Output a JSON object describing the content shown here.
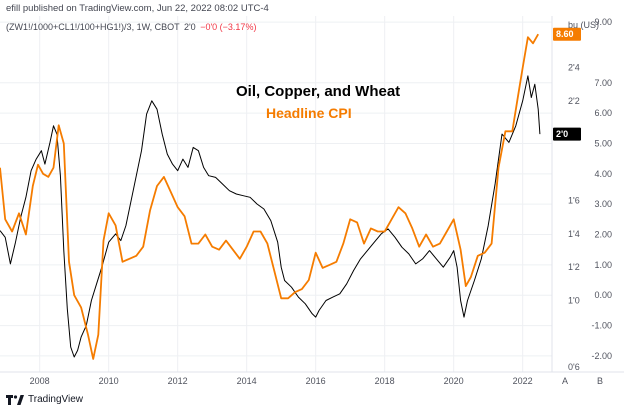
{
  "header": {
    "publisher_line": "efill published on TradingView.com, Jun 22, 2022 08:02 UTC-4",
    "symbol": "(ZW1!/1000+CL1!/100+HG1!)/3, 1W, CBOT",
    "last": "2'0",
    "change": "−0'0 (−3.17%)"
  },
  "branding": {
    "logo_text": "TradingView"
  },
  "colors": {
    "commodity": "#000000",
    "cpi": "#f57c00",
    "last_tag_bg": "#000000",
    "cpi_tag_bg": "#f57c00",
    "grid": "#eef0f3",
    "axis_text": "#50535e"
  },
  "chart_data": {
    "type": "line",
    "title": "Oil, Copper, and Wheat",
    "subtitle": "Headline CPI",
    "x_tick_labels": [
      "2008",
      "2010",
      "2012",
      "2014",
      "2016",
      "2018",
      "2020",
      "2022"
    ],
    "xlim": [
      2006.85,
      2022.85
    ],
    "left_axis": {
      "unit": "bu (US)",
      "range": [
        0.57,
        2.71
      ],
      "ticks": [
        {
          "value": 0.6,
          "label": "0'6"
        },
        {
          "value": 1.0,
          "label": "1'0"
        },
        {
          "value": 1.2,
          "label": "1'2"
        },
        {
          "value": 1.4,
          "label": "1'4"
        },
        {
          "value": 1.6,
          "label": "1'6"
        },
        {
          "value": 2.2,
          "label": "2'2"
        },
        {
          "value": 2.4,
          "label": "2'4"
        },
        {
          "value": 2.6,
          "label": "2'6"
        }
      ]
    },
    "right_axis": {
      "range": [
        -2.53,
        9.2
      ],
      "ticks": [
        {
          "value": 9,
          "label": "9.00"
        },
        {
          "value": 7,
          "label": "7.00"
        },
        {
          "value": 6,
          "label": "6.00"
        },
        {
          "value": 5,
          "label": "5.00"
        },
        {
          "value": 4,
          "label": "4.00"
        },
        {
          "value": 3,
          "label": "3.00"
        },
        {
          "value": 2,
          "label": "2.00"
        },
        {
          "value": 1,
          "label": "1.00"
        },
        {
          "value": 0,
          "label": "0.00"
        },
        {
          "value": -1,
          "label": "-1.00"
        },
        {
          "value": -2,
          "label": "-2.00"
        }
      ]
    },
    "last_value_tags": [
      {
        "series": "Oil, Copper, and Wheat",
        "label": "2'0",
        "value": 2.0,
        "axis": "left"
      },
      {
        "series": "Headline CPI",
        "label": "8.60",
        "value": 8.6,
        "axis": "right"
      }
    ],
    "scale_buttons": [
      "A",
      "B"
    ],
    "series": [
      {
        "name": "Oil, Copper, and Wheat",
        "axis": "left",
        "x": [
          2006.85,
          2007.0,
          2007.15,
          2007.3,
          2007.45,
          2007.6,
          2007.75,
          2007.9,
          2008.05,
          2008.15,
          2008.3,
          2008.4,
          2008.5,
          2008.6,
          2008.7,
          2008.8,
          2008.9,
          2009.0,
          2009.1,
          2009.2,
          2009.35,
          2009.5,
          2009.65,
          2009.8,
          2010.0,
          2010.2,
          2010.35,
          2010.5,
          2010.65,
          2010.8,
          2010.95,
          2011.1,
          2011.25,
          2011.4,
          2011.55,
          2011.7,
          2011.85,
          2012.0,
          2012.15,
          2012.3,
          2012.45,
          2012.6,
          2012.75,
          2012.9,
          2013.1,
          2013.3,
          2013.5,
          2013.7,
          2013.9,
          2014.1,
          2014.3,
          2014.5,
          2014.7,
          2014.9,
          2015.0,
          2015.1,
          2015.3,
          2015.5,
          2015.7,
          2015.9,
          2016.0,
          2016.1,
          2016.3,
          2016.5,
          2016.7,
          2016.9,
          2017.1,
          2017.3,
          2017.5,
          2017.7,
          2017.9,
          2018.1,
          2018.3,
          2018.5,
          2018.7,
          2018.9,
          2019.1,
          2019.3,
          2019.5,
          2019.7,
          2019.9,
          2020.0,
          2020.1,
          2020.2,
          2020.3,
          2020.4,
          2020.6,
          2020.8,
          2021.0,
          2021.2,
          2021.4,
          2021.6,
          2021.8,
          2022.0,
          2022.15,
          2022.25,
          2022.35,
          2022.45,
          2022.5
        ],
        "values": [
          1.42,
          1.38,
          1.22,
          1.35,
          1.5,
          1.62,
          1.78,
          1.85,
          1.9,
          1.82,
          1.95,
          2.05,
          2.0,
          1.75,
          1.3,
          0.95,
          0.72,
          0.66,
          0.7,
          0.78,
          0.85,
          1.0,
          1.1,
          1.2,
          1.35,
          1.4,
          1.36,
          1.45,
          1.6,
          1.75,
          1.9,
          2.12,
          2.2,
          2.15,
          2.0,
          1.88,
          1.82,
          1.78,
          1.85,
          1.8,
          1.92,
          1.9,
          1.8,
          1.75,
          1.74,
          1.7,
          1.66,
          1.64,
          1.63,
          1.62,
          1.58,
          1.55,
          1.48,
          1.35,
          1.2,
          1.12,
          1.08,
          1.02,
          0.98,
          0.92,
          0.9,
          0.94,
          1.0,
          1.02,
          1.04,
          1.1,
          1.18,
          1.25,
          1.3,
          1.35,
          1.4,
          1.43,
          1.38,
          1.32,
          1.28,
          1.22,
          1.25,
          1.3,
          1.25,
          1.2,
          1.26,
          1.3,
          1.2,
          1.0,
          0.9,
          1.0,
          1.12,
          1.25,
          1.45,
          1.7,
          2.0,
          1.95,
          2.05,
          2.2,
          2.35,
          2.22,
          2.3,
          2.15,
          2.0
        ]
      },
      {
        "name": "Headline CPI",
        "axis": "right",
        "x": [
          2006.85,
          2007.0,
          2007.2,
          2007.4,
          2007.6,
          2007.8,
          2007.95,
          2008.1,
          2008.25,
          2008.4,
          2008.55,
          2008.7,
          2008.85,
          2009.0,
          2009.2,
          2009.4,
          2009.55,
          2009.7,
          2009.85,
          2010.0,
          2010.2,
          2010.4,
          2010.6,
          2010.8,
          2011.0,
          2011.2,
          2011.4,
          2011.6,
          2011.8,
          2012.0,
          2012.2,
          2012.4,
          2012.6,
          2012.8,
          2013.0,
          2013.2,
          2013.4,
          2013.6,
          2013.8,
          2014.0,
          2014.2,
          2014.4,
          2014.6,
          2014.8,
          2015.0,
          2015.2,
          2015.4,
          2015.6,
          2015.8,
          2016.0,
          2016.2,
          2016.4,
          2016.6,
          2016.8,
          2017.0,
          2017.2,
          2017.4,
          2017.6,
          2017.8,
          2018.0,
          2018.2,
          2018.4,
          2018.6,
          2018.8,
          2019.0,
          2019.2,
          2019.4,
          2019.6,
          2019.8,
          2020.0,
          2020.2,
          2020.35,
          2020.5,
          2020.7,
          2020.9,
          2021.1,
          2021.3,
          2021.5,
          2021.7,
          2021.9,
          2022.0,
          2022.15,
          2022.3,
          2022.45
        ],
        "values": [
          4.2,
          2.5,
          2.1,
          2.7,
          2.0,
          3.6,
          4.3,
          4.0,
          3.9,
          4.2,
          5.6,
          5.0,
          1.1,
          0.0,
          -0.4,
          -1.3,
          -2.1,
          -1.3,
          1.8,
          2.7,
          2.3,
          1.1,
          1.2,
          1.3,
          1.6,
          2.8,
          3.6,
          3.9,
          3.4,
          2.9,
          2.6,
          1.7,
          1.7,
          2.0,
          1.6,
          1.5,
          1.8,
          1.5,
          1.2,
          1.6,
          2.1,
          2.1,
          1.7,
          0.8,
          -0.1,
          -0.1,
          0.1,
          0.2,
          0.5,
          1.4,
          0.9,
          1.0,
          1.1,
          1.7,
          2.5,
          2.4,
          1.7,
          2.2,
          2.1,
          2.1,
          2.5,
          2.9,
          2.7,
          2.2,
          1.6,
          2.0,
          1.6,
          1.7,
          2.1,
          2.5,
          1.5,
          0.3,
          0.6,
          1.3,
          1.4,
          1.7,
          4.2,
          5.4,
          5.4,
          6.8,
          7.5,
          8.5,
          8.3,
          8.6
        ]
      }
    ]
  }
}
